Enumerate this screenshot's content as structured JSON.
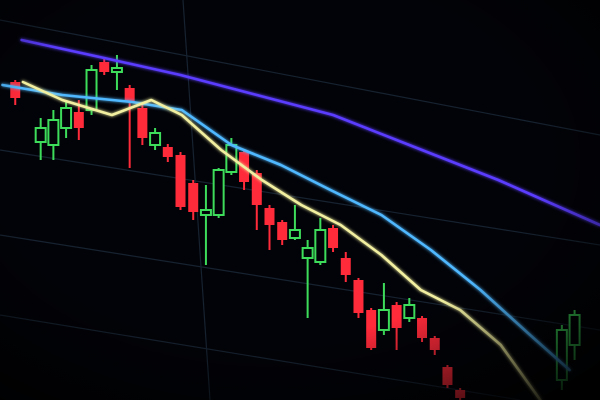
{
  "chart_data": {
    "type": "candlestick",
    "xlim": [
      -0.2,
      47
    ],
    "ylim": [
      0,
      400
    ],
    "up_color": "#3ddc5a",
    "down_color": "#ff2a3a",
    "x": [
      1,
      3,
      4,
      5,
      6,
      7,
      8,
      9,
      10,
      11,
      12,
      13,
      14,
      15,
      16,
      17,
      18,
      19,
      20,
      21,
      22,
      23,
      24,
      25,
      26,
      27,
      28,
      29,
      30,
      31,
      32,
      33,
      34,
      35,
      36,
      44,
      45
    ],
    "open": [
      318,
      258,
      255,
      272,
      288,
      290,
      338,
      328,
      312,
      292,
      255,
      253,
      245,
      217,
      185,
      185,
      228,
      248,
      227,
      192,
      178,
      162,
      142,
      138,
      172,
      142,
      120,
      90,
      70,
      95,
      82,
      82,
      62,
      33,
      10,
      20,
      55
    ],
    "close": [
      302,
      272,
      280,
      292,
      272,
      330,
      328,
      332,
      298,
      262,
      267,
      243,
      193,
      188,
      190,
      230,
      255,
      218,
      195,
      175,
      160,
      170,
      152,
      170,
      152,
      125,
      87,
      52,
      90,
      72,
      95,
      62,
      50,
      15,
      2,
      70,
      85
    ],
    "high": [
      320,
      282,
      290,
      300,
      300,
      335,
      342,
      345,
      315,
      295,
      272,
      256,
      248,
      220,
      215,
      232,
      262,
      250,
      230,
      195,
      180,
      195,
      160,
      182,
      175,
      148,
      122,
      92,
      117,
      98,
      102,
      84,
      64,
      35,
      12,
      75,
      90
    ],
    "low": [
      295,
      240,
      240,
      262,
      260,
      285,
      325,
      310,
      232,
      255,
      250,
      238,
      190,
      180,
      135,
      182,
      225,
      210,
      170,
      150,
      155,
      160,
      82,
      135,
      148,
      118,
      82,
      50,
      65,
      50,
      78,
      58,
      45,
      12,
      0,
      10,
      40
    ],
    "lines": [
      {
        "color": "#5a3cff",
        "x": [
          1.5,
          8,
          14,
          20,
          26,
          33,
          39,
          47
        ],
        "values": [
          360,
          342,
          325,
          305,
          285,
          250,
          220,
          175
        ]
      },
      {
        "color": "#4fb8ff",
        "x": [
          0,
          4.7,
          10.2,
          14.1,
          18,
          21.9,
          25.8,
          29.8,
          33.7,
          37.6,
          41.5,
          44.6
        ],
        "values": [
          315,
          305,
          298,
          290,
          255,
          235,
          210,
          185,
          150,
          110,
          65,
          30
        ]
      },
      {
        "color": "#f2f0a0",
        "x": [
          1.6,
          4.7,
          8.6,
          11.7,
          14.1,
          17.2,
          20.4,
          23.5,
          26.6,
          29.8,
          32.9,
          36,
          39.2,
          42.3
        ],
        "values": [
          318,
          300,
          285,
          300,
          285,
          250,
          220,
          195,
          175,
          145,
          110,
          90,
          55,
          0
        ]
      }
    ]
  }
}
